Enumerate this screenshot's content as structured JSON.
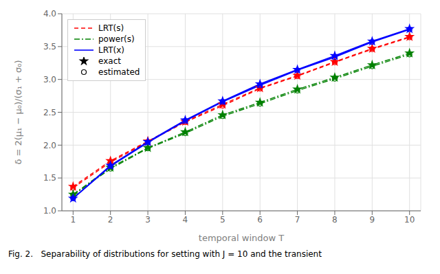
{
  "chart_data": {
    "type": "line",
    "xlabel": "temporal window T",
    "ylabel": "δ = 2(μ₁ − μ₀)/(σ₁ + σ₀)",
    "annotations": [
      "Fig. 2.   Separability of distributions for setting with J = 10 and the transient"
    ],
    "x": [
      1,
      2,
      3,
      4,
      5,
      6,
      7,
      8,
      9,
      10
    ],
    "series": [
      {
        "name": "LRT(s)",
        "color": "#FF0000",
        "line_style": "dashed",
        "marker": "star",
        "values": [
          1.37,
          1.76,
          2.06,
          2.36,
          2.62,
          2.87,
          3.06,
          3.27,
          3.47,
          3.65
        ]
      },
      {
        "name": "LRT(s)",
        "color": "#FF0000",
        "line_style": "dashed",
        "marker": "circle",
        "values": [
          1.35,
          1.74,
          2.05,
          2.35,
          2.6,
          2.86,
          3.05,
          3.26,
          3.46,
          3.64
        ]
      },
      {
        "name": "power(s)",
        "color": "#008000",
        "line_style": "dashdot",
        "marker": "star",
        "values": [
          1.25,
          1.66,
          1.96,
          2.2,
          2.46,
          2.65,
          2.85,
          3.03,
          3.22,
          3.4
        ]
      },
      {
        "name": "power(s)",
        "color": "#008000",
        "line_style": "dashdot",
        "marker": "circle",
        "values": [
          1.24,
          1.64,
          1.95,
          2.18,
          2.44,
          2.63,
          2.83,
          3.01,
          3.2,
          3.38
        ]
      },
      {
        "name": "LRT(x)",
        "color": "#0000FF",
        "line_style": "solid",
        "marker": "star",
        "values": [
          1.19,
          1.69,
          2.05,
          2.38,
          2.67,
          2.93,
          3.15,
          3.36,
          3.58,
          3.77
        ]
      },
      {
        "name": "LRT(x)",
        "color": "#0000FF",
        "line_style": "solid",
        "marker": "circle",
        "values": [
          1.19,
          1.68,
          2.04,
          2.37,
          2.66,
          2.91,
          3.14,
          3.34,
          3.57,
          3.76
        ]
      }
    ],
    "marker_legend": [
      {
        "name": "exact",
        "marker": "star"
      },
      {
        "name": "estimated",
        "marker": "circle"
      }
    ],
    "xlim": [
      0.7,
      10.3
    ],
    "ylim": [
      1.0,
      4.0
    ],
    "xticks": [
      1,
      2,
      3,
      4,
      5,
      6,
      7,
      8,
      9,
      10
    ],
    "yticks": [
      {
        "value": 1,
        "label": "1.0"
      },
      1.5,
      {
        "value": 2,
        "label": "2.0"
      },
      2.5,
      {
        "value": 3,
        "label": "3.0"
      },
      3.5,
      {
        "value": 4,
        "label": "4.0"
      }
    ],
    "grid": true,
    "legend": "upper left"
  }
}
